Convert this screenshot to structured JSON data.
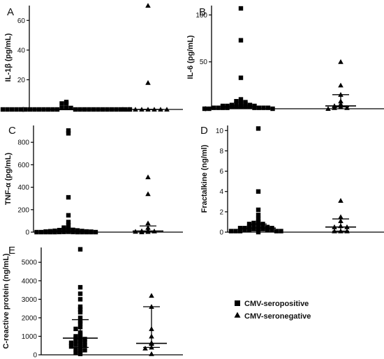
{
  "legend": [
    {
      "marker": "square",
      "label": "CMV-seropositive"
    },
    {
      "marker": "triangle",
      "label": "CMV-seronegative"
    }
  ],
  "chart_data": [
    {
      "type": "scatter",
      "panel": "A",
      "ylabel": "IL-1β (pg/mL)",
      "ylim": [
        0,
        70
      ],
      "yticks": [
        0,
        20,
        40,
        60
      ],
      "groups": [
        {
          "name": "CMV-seropositive",
          "marker": "square",
          "values": [
            5,
            4,
            4,
            1,
            1,
            1,
            0,
            0,
            0,
            0,
            0,
            0,
            0,
            0,
            0,
            0,
            0,
            0,
            0,
            0,
            0,
            0,
            0,
            0,
            0,
            0,
            0,
            0,
            0,
            0,
            0,
            0
          ],
          "median": 0,
          "q1": 0,
          "q3": 0
        },
        {
          "name": "CMV-seronegative",
          "marker": "triangle",
          "values": [
            70,
            18,
            0,
            0,
            0,
            0,
            0,
            0,
            0,
            0
          ],
          "median": 0,
          "q1": 0,
          "q3": 0
        }
      ]
    },
    {
      "type": "scatter",
      "panel": "B",
      "ylabel": "IL-6 (pg/mL)",
      "ylim": [
        0,
        110
      ],
      "yticks": [
        0,
        50,
        100
      ],
      "groups": [
        {
          "name": "CMV-seropositive",
          "marker": "square",
          "values": [
            107,
            73,
            33,
            10,
            8,
            7,
            6,
            5,
            5,
            4,
            4,
            3,
            3,
            3,
            2,
            2,
            2,
            2,
            2,
            1,
            1,
            1,
            1,
            1,
            1,
            1,
            1,
            0,
            0,
            0
          ],
          "median": 2,
          "q1": 1,
          "q3": 4
        },
        {
          "name": "CMV-seronegative",
          "marker": "triangle",
          "values": [
            50,
            25,
            15,
            8,
            5,
            3,
            2,
            1,
            1,
            0
          ],
          "median": 3,
          "q1": 2,
          "q3": 15
        }
      ]
    },
    {
      "type": "scatter",
      "panel": "C",
      "ylabel": "TNF-α (pg/mL)",
      "ylim": [
        0,
        950
      ],
      "yticks": [
        0,
        200,
        400,
        600,
        800
      ],
      "groups": [
        {
          "name": "CMV-seropositive",
          "marker": "square",
          "values": [
            905,
            880,
            310,
            150,
            90,
            60,
            40,
            30,
            25,
            20,
            18,
            15,
            12,
            10,
            8,
            6,
            5,
            4,
            3,
            2,
            1,
            1,
            0,
            0,
            0,
            0,
            0,
            0,
            0,
            0,
            0,
            0
          ],
          "median": 10,
          "q1": 0,
          "q3": 30
        },
        {
          "name": "CMV-seronegative",
          "marker": "triangle",
          "values": [
            490,
            340,
            80,
            40,
            15,
            10,
            8,
            5,
            3,
            0
          ],
          "median": 10,
          "q1": 4,
          "q3": 55
        }
      ]
    },
    {
      "type": "scatter",
      "panel": "D",
      "ylabel": "Fractalkine (ng/ml)",
      "ylim": [
        0,
        10.5
      ],
      "yticks": [
        0,
        2,
        4,
        6,
        8,
        10
      ],
      "groups": [
        {
          "name": "CMV-seropositive",
          "marker": "square",
          "values": [
            10.2,
            4.0,
            2.2,
            1.7,
            1.3,
            1.0,
            0.9,
            0.8,
            0.8,
            0.7,
            0.6,
            0.6,
            0.5,
            0.5,
            0.4,
            0.4,
            0.4,
            0.3,
            0.3,
            0.3,
            0.2,
            0.2,
            0.2,
            0.2,
            0.1,
            0.1,
            0.1,
            0.1,
            0.1,
            0.0
          ],
          "median": 0.4,
          "q1": 0.2,
          "q3": 0.8
        },
        {
          "name": "CMV-seronegative",
          "marker": "triangle",
          "values": [
            3.1,
            1.5,
            1.1,
            0.6,
            0.5,
            0.5,
            0.1,
            0.1,
            0.1
          ],
          "median": 0.5,
          "q1": 0.1,
          "q3": 1.3
        }
      ]
    },
    {
      "type": "scatter",
      "panel": "E",
      "ylabel": "C-reactive protein (ng/mL)",
      "ylim": [
        0,
        5800
      ],
      "yticks": [
        0,
        1000,
        2000,
        3000,
        4000,
        5000
      ],
      "groups": [
        {
          "name": "CMV-seropositive",
          "marker": "square",
          "values": [
            5700,
            3650,
            3300,
            3000,
            2600,
            2450,
            2300,
            2000,
            1800,
            1700,
            1500,
            1400,
            1200,
            1100,
            1000,
            950,
            900,
            850,
            800,
            750,
            700,
            650,
            600,
            550,
            500,
            450,
            400,
            300,
            250,
            200,
            100,
            50
          ],
          "median": 900,
          "q1": 400,
          "q3": 1900
        },
        {
          "name": "CMV-seronegative",
          "marker": "triangle",
          "values": [
            3200,
            2600,
            1400,
            1000,
            650,
            600,
            400,
            350,
            50
          ],
          "median": 620,
          "q1": 400,
          "q3": 2600
        }
      ]
    }
  ]
}
